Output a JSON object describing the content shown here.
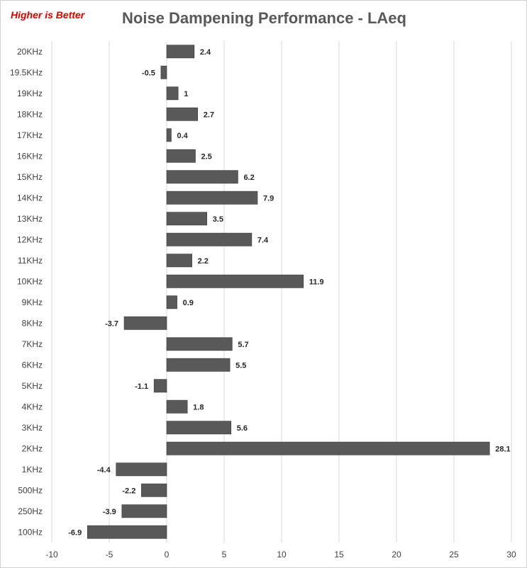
{
  "note": "Higher is Better",
  "chart_data": {
    "type": "bar",
    "orientation": "horizontal",
    "title": "Noise Dampening Performance - LAeq",
    "categories": [
      "20KHz",
      "19.5KHz",
      "19KHz",
      "18KHz",
      "17KHz",
      "16KHz",
      "15KHz",
      "14KHz",
      "13KHz",
      "12KHz",
      "11KHz",
      "10KHz",
      "9KHz",
      "8KHz",
      "7KHz",
      "6KHz",
      "5KHz",
      "4KHz",
      "3KHz",
      "2KHz",
      "1KHz",
      "500Hz",
      "250Hz",
      "100Hz"
    ],
    "values": [
      2.4,
      -0.5,
      1,
      2.7,
      0.4,
      2.5,
      6.2,
      7.9,
      3.5,
      7.4,
      2.2,
      11.9,
      0.9,
      -3.7,
      5.7,
      5.5,
      -1.1,
      1.8,
      5.6,
      28.1,
      -4.4,
      -2.2,
      -3.9,
      -6.9
    ],
    "value_labels": [
      "2.4",
      "-0.5",
      "1",
      "2.7",
      "0.4",
      "2.5",
      "6.2",
      "7.9",
      "3.5",
      "7.4",
      "2.2",
      "11.9",
      "0.9",
      "-3.7",
      "5.7",
      "5.5",
      "-1.1",
      "1.8",
      "5.6",
      "28.1",
      "-4.4",
      "-2.2",
      "-3.9",
      "-6.9"
    ],
    "xlim": [
      -10,
      30
    ],
    "xticks": [
      -10,
      -5,
      0,
      5,
      10,
      15,
      20,
      25,
      30
    ],
    "xtick_labels": [
      "-10",
      "-5",
      "0",
      "5",
      "10",
      "15",
      "20",
      "25",
      "30"
    ],
    "bar_color": "#595959",
    "grid_color": "#d9d9d9",
    "grid": true
  }
}
